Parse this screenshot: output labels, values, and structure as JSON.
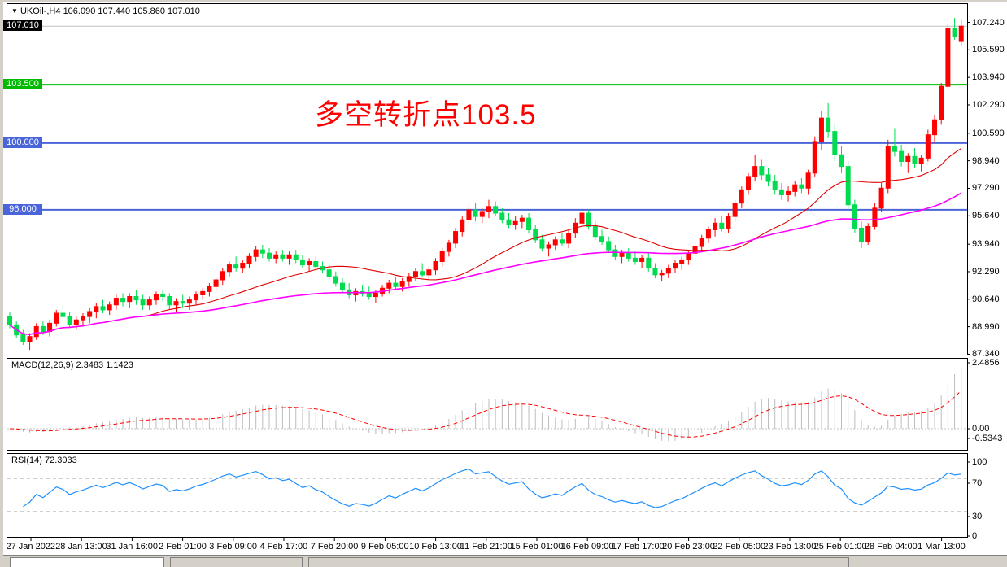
{
  "header": {
    "dropdown_icon": "▼",
    "symbol": "UKOil-,H4",
    "open": "106.090",
    "high": "107.440",
    "low": "105.860",
    "close": "107.010"
  },
  "annotation": {
    "text": "多空转折点103.5",
    "color": "#FF0000"
  },
  "colors": {
    "bull": "#FF0000",
    "bear": "#00DC50",
    "ma_fast": "#E00000",
    "ma_slow": "#FF00FF",
    "macd_hist": "#BDBDBD",
    "macd_signal": "#FF0000",
    "rsi_line": "#1E90FF",
    "level_dash": "#C0C0C0",
    "current_line": "#C0C0C0",
    "green_line": "#00BA00",
    "blue_line": "#4A64D9"
  },
  "chart_data": {
    "type": "candlestick",
    "title": "UKOil-,H4",
    "timeframe": "H4",
    "ylim": [
      87.34,
      107.24
    ],
    "y_ticks": [
      "107.240",
      "105.590",
      "103.940",
      "102.290",
      "100.590",
      "98.940",
      "97.290",
      "95.640",
      "93.940",
      "92.290",
      "90.640",
      "88.990",
      "87.340"
    ],
    "x_labels": [
      "27 Jan 2022",
      "28 Jan 13:00",
      "31 Jan 16:00",
      "2 Feb 01:00",
      "3 Feb 09:00",
      "4 Feb 17:00",
      "7 Feb 20:00",
      "9 Feb 05:00",
      "10 Feb 13:00",
      "11 Feb 21:00",
      "15 Feb 01:00",
      "16 Feb 09:00",
      "17 Feb 17:00",
      "20 Feb 23:00",
      "22 Feb 05:00",
      "23 Feb 13:00",
      "25 Feb 01:00",
      "28 Feb 04:00",
      "1 Mar 13:00"
    ],
    "price_lines": [
      {
        "label": "107.010",
        "price": 107.01,
        "kind": "current-bid",
        "color": "#C0C0C0",
        "bg": "#000000"
      },
      {
        "label": "103.500",
        "price": 103.5,
        "kind": "horizontal",
        "color": "#00BA00",
        "bg": "#00BA00"
      },
      {
        "label": "100.000",
        "price": 100.0,
        "kind": "horizontal",
        "color": "#4A64D9",
        "bg": "#4A64D9"
      },
      {
        "label": "96.000",
        "price": 96.0,
        "kind": "horizontal",
        "color": "#4A64D9",
        "bg": "#4A64D9"
      }
    ],
    "candles_format": [
      "open",
      "high",
      "low",
      "close"
    ],
    "candles": [
      [
        89.6,
        89.9,
        88.9,
        89.1
      ],
      [
        89.1,
        89.3,
        88.3,
        88.5
      ],
      [
        88.5,
        88.8,
        87.9,
        88.1
      ],
      [
        88.1,
        88.6,
        87.6,
        88.4
      ],
      [
        88.4,
        89.2,
        88.2,
        89.0
      ],
      [
        89.0,
        89.3,
        88.5,
        88.7
      ],
      [
        88.7,
        89.4,
        88.4,
        89.2
      ],
      [
        89.2,
        90.0,
        89.0,
        89.8
      ],
      [
        89.8,
        90.3,
        89.3,
        89.6
      ],
      [
        89.6,
        89.9,
        88.9,
        89.1
      ],
      [
        89.1,
        89.6,
        88.8,
        89.4
      ],
      [
        89.4,
        89.8,
        89.0,
        89.6
      ],
      [
        89.6,
        90.1,
        89.2,
        89.9
      ],
      [
        89.9,
        90.4,
        89.5,
        90.2
      ],
      [
        90.2,
        90.6,
        89.8,
        90.0
      ],
      [
        90.0,
        90.5,
        89.7,
        90.3
      ],
      [
        90.3,
        90.9,
        90.0,
        90.7
      ],
      [
        90.7,
        91.0,
        90.2,
        90.5
      ],
      [
        90.5,
        91.0,
        90.1,
        90.8
      ],
      [
        90.8,
        91.2,
        90.3,
        90.6
      ],
      [
        90.6,
        90.9,
        90.0,
        90.3
      ],
      [
        90.3,
        90.8,
        90.0,
        90.6
      ],
      [
        90.6,
        91.1,
        90.3,
        90.9
      ],
      [
        90.9,
        91.2,
        90.5,
        90.8
      ],
      [
        90.8,
        91.0,
        90.0,
        90.3
      ],
      [
        90.3,
        90.7,
        89.9,
        90.5
      ],
      [
        90.5,
        90.9,
        90.1,
        90.4
      ],
      [
        90.4,
        90.8,
        90.0,
        90.6
      ],
      [
        90.6,
        91.1,
        90.3,
        90.9
      ],
      [
        90.9,
        91.3,
        90.6,
        91.1
      ],
      [
        91.1,
        91.6,
        90.8,
        91.4
      ],
      [
        91.4,
        92.0,
        91.1,
        91.8
      ],
      [
        91.8,
        92.5,
        91.5,
        92.3
      ],
      [
        92.3,
        92.9,
        92.0,
        92.7
      ],
      [
        92.7,
        93.2,
        92.3,
        92.5
      ],
      [
        92.5,
        93.0,
        92.2,
        92.8
      ],
      [
        92.8,
        93.4,
        92.5,
        93.2
      ],
      [
        93.2,
        93.8,
        92.9,
        93.6
      ],
      [
        93.6,
        93.9,
        93.1,
        93.4
      ],
      [
        93.4,
        93.7,
        92.9,
        93.1
      ],
      [
        93.1,
        93.5,
        92.8,
        93.3
      ],
      [
        93.3,
        93.6,
        92.9,
        93.1
      ],
      [
        93.1,
        93.5,
        92.7,
        93.3
      ],
      [
        93.3,
        93.6,
        92.8,
        93.0
      ],
      [
        93.0,
        93.3,
        92.5,
        92.7
      ],
      [
        92.7,
        93.1,
        92.3,
        92.9
      ],
      [
        92.9,
        93.2,
        92.4,
        92.6
      ],
      [
        92.6,
        92.9,
        92.2,
        92.4
      ],
      [
        92.4,
        92.7,
        91.8,
        92.0
      ],
      [
        92.0,
        92.3,
        91.4,
        91.6
      ],
      [
        91.6,
        91.9,
        91.0,
        91.2
      ],
      [
        91.2,
        91.6,
        90.7,
        90.9
      ],
      [
        90.9,
        91.3,
        90.5,
        91.1
      ],
      [
        91.1,
        91.5,
        90.8,
        91.0
      ],
      [
        91.0,
        91.4,
        90.6,
        90.8
      ],
      [
        90.8,
        91.2,
        90.4,
        91.0
      ],
      [
        91.0,
        91.5,
        90.8,
        91.3
      ],
      [
        91.3,
        91.8,
        91.0,
        91.6
      ],
      [
        91.6,
        92.0,
        91.2,
        91.4
      ],
      [
        91.4,
        91.9,
        91.1,
        91.7
      ],
      [
        91.7,
        92.2,
        91.4,
        92.0
      ],
      [
        92.0,
        92.5,
        91.7,
        92.3
      ],
      [
        92.3,
        92.8,
        92.0,
        92.1
      ],
      [
        92.1,
        92.6,
        91.8,
        92.4
      ],
      [
        92.4,
        93.1,
        92.1,
        92.9
      ],
      [
        92.9,
        93.7,
        92.6,
        93.5
      ],
      [
        93.5,
        94.2,
        93.2,
        94.0
      ],
      [
        94.0,
        94.9,
        93.7,
        94.7
      ],
      [
        94.7,
        95.6,
        94.4,
        95.4
      ],
      [
        95.4,
        96.3,
        95.1,
        96.0
      ],
      [
        96.0,
        96.4,
        95.3,
        95.6
      ],
      [
        95.6,
        96.1,
        95.2,
        95.9
      ],
      [
        95.9,
        96.6,
        95.5,
        96.2
      ],
      [
        96.2,
        96.5,
        95.6,
        95.8
      ],
      [
        95.8,
        96.1,
        95.2,
        95.4
      ],
      [
        95.4,
        95.8,
        94.9,
        95.1
      ],
      [
        95.1,
        95.6,
        94.8,
        95.3
      ],
      [
        95.3,
        95.7,
        94.9,
        95.5
      ],
      [
        95.5,
        95.8,
        94.6,
        94.8
      ],
      [
        94.8,
        95.1,
        94.0,
        94.2
      ],
      [
        94.2,
        94.5,
        93.5,
        93.7
      ],
      [
        93.7,
        94.1,
        93.2,
        93.9
      ],
      [
        93.9,
        94.4,
        93.6,
        94.2
      ],
      [
        94.2,
        94.6,
        93.8,
        94.0
      ],
      [
        94.0,
        94.8,
        93.7,
        94.6
      ],
      [
        94.6,
        95.5,
        94.3,
        95.2
      ],
      [
        95.2,
        96.1,
        94.9,
        95.8
      ],
      [
        95.8,
        96.0,
        94.8,
        95.0
      ],
      [
        95.0,
        95.3,
        94.2,
        94.4
      ],
      [
        94.4,
        94.8,
        93.9,
        94.1
      ],
      [
        94.1,
        94.4,
        93.4,
        93.6
      ],
      [
        93.6,
        93.9,
        93.0,
        93.2
      ],
      [
        93.2,
        93.6,
        92.8,
        93.4
      ],
      [
        93.4,
        93.7,
        92.9,
        93.1
      ],
      [
        93.1,
        93.5,
        92.7,
        92.9
      ],
      [
        92.9,
        93.3,
        92.5,
        93.1
      ],
      [
        93.1,
        93.4,
        92.3,
        92.5
      ],
      [
        92.5,
        92.8,
        91.9,
        92.1
      ],
      [
        92.1,
        92.4,
        91.7,
        92.2
      ],
      [
        92.2,
        92.7,
        91.9,
        92.5
      ],
      [
        92.5,
        93.0,
        92.2,
        92.8
      ],
      [
        92.8,
        93.2,
        92.4,
        93.0
      ],
      [
        93.0,
        93.6,
        92.7,
        93.4
      ],
      [
        93.4,
        94.0,
        93.1,
        93.8
      ],
      [
        93.8,
        94.5,
        93.5,
        94.3
      ],
      [
        94.3,
        95.0,
        94.0,
        94.8
      ],
      [
        94.8,
        95.5,
        94.4,
        95.2
      ],
      [
        95.2,
        95.6,
        94.7,
        94.9
      ],
      [
        94.9,
        95.8,
        94.6,
        95.6
      ],
      [
        95.6,
        96.6,
        95.3,
        96.4
      ],
      [
        96.4,
        97.4,
        96.1,
        97.2
      ],
      [
        97.2,
        98.2,
        96.9,
        98.0
      ],
      [
        98.0,
        99.3,
        97.7,
        98.6
      ],
      [
        98.6,
        99.0,
        97.8,
        98.1
      ],
      [
        98.1,
        98.5,
        97.4,
        97.7
      ],
      [
        97.7,
        98.1,
        96.9,
        97.2
      ],
      [
        97.2,
        97.6,
        96.6,
        96.9
      ],
      [
        96.9,
        97.4,
        96.5,
        97.1
      ],
      [
        97.1,
        97.7,
        96.8,
        97.5
      ],
      [
        97.5,
        97.9,
        97.0,
        97.3
      ],
      [
        97.3,
        98.4,
        96.9,
        98.2
      ],
      [
        98.2,
        100.4,
        98.0,
        100.1
      ],
      [
        100.1,
        101.9,
        99.6,
        101.5
      ],
      [
        101.5,
        102.4,
        100.3,
        100.7
      ],
      [
        100.7,
        101.2,
        98.9,
        99.3
      ],
      [
        99.3,
        99.8,
        98.2,
        98.6
      ],
      [
        98.6,
        98.9,
        96.0,
        96.3
      ],
      [
        96.3,
        96.6,
        94.6,
        94.9
      ],
      [
        94.9,
        95.3,
        93.7,
        94.1
      ],
      [
        94.1,
        95.2,
        93.9,
        95.0
      ],
      [
        95.0,
        96.4,
        94.8,
        96.1
      ],
      [
        96.1,
        97.6,
        95.9,
        97.3
      ],
      [
        97.3,
        100.2,
        97.0,
        99.8
      ],
      [
        99.8,
        100.9,
        99.2,
        99.5
      ],
      [
        99.5,
        99.9,
        98.6,
        98.9
      ],
      [
        98.9,
        99.4,
        98.2,
        99.2
      ],
      [
        99.2,
        99.7,
        98.5,
        98.8
      ],
      [
        98.8,
        99.3,
        98.3,
        99.1
      ],
      [
        99.1,
        100.8,
        98.9,
        100.5
      ],
      [
        100.5,
        101.7,
        100.0,
        101.4
      ],
      [
        101.4,
        103.6,
        101.1,
        103.4
      ],
      [
        103.4,
        107.2,
        103.2,
        106.9
      ],
      [
        106.9,
        107.5,
        106.2,
        106.4
      ],
      [
        106.09,
        107.44,
        105.86,
        107.01
      ]
    ],
    "overlays": [
      {
        "name": "ma-fast",
        "type": "sma",
        "period": 21,
        "color": "#E00000"
      },
      {
        "name": "ma-slow",
        "type": "sma",
        "period": 55,
        "color": "#FF00FF"
      }
    ],
    "indicators": {
      "macd": {
        "label": "MACD(12,26,9)",
        "values": "2.3483 1.1423",
        "params": [
          12,
          26,
          9
        ],
        "main_value": 2.3483,
        "signal_value": 1.1423,
        "axis": [
          "2.4856",
          "0.00",
          "-0.5343"
        ]
      },
      "rsi": {
        "label": "RSI(14)",
        "values": "72.3033",
        "period": 14,
        "value": 72.3033,
        "axis": [
          "100",
          "70",
          "30",
          "0"
        ],
        "levels": [
          70,
          30
        ]
      }
    }
  }
}
